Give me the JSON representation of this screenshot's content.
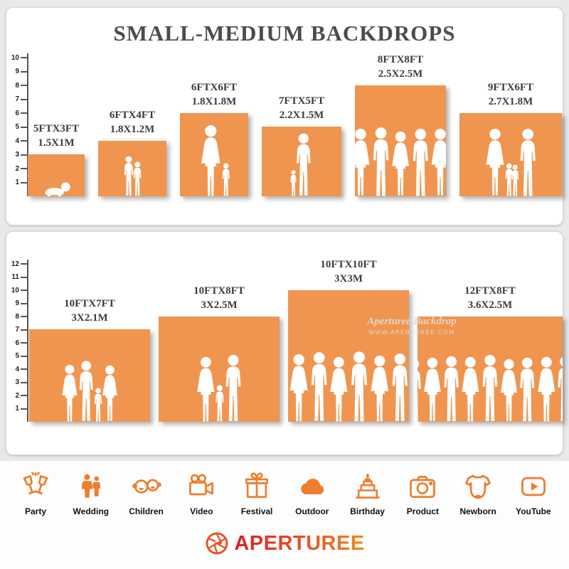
{
  "title": "SMALL-MEDIUM BACKDROPS",
  "colors": {
    "backdrop_orange": "#F0954F",
    "icon_orange": "#EE7D2E",
    "brand_red": "#D91F26",
    "brand_orange": "#F08A1E",
    "silhouette": "#FFFFFF"
  },
  "panel_top": {
    "ruler_ticks": [
      1,
      2,
      3,
      4,
      5,
      6,
      7,
      8,
      9,
      10
    ],
    "backdrops": [
      {
        "size_ft": "5FTX3FT",
        "size_m": "1.5X1M",
        "w_ft": 5,
        "h_ft": 3,
        "figures": [
          {
            "type": "baby",
            "ft": 1.1
          }
        ]
      },
      {
        "size_ft": "6FTX4FT",
        "size_m": "1.8X1.2M",
        "w_ft": 6,
        "h_ft": 4,
        "figures": [
          {
            "type": "child",
            "ft": 2.9
          },
          {
            "type": "child",
            "ft": 2.5
          }
        ]
      },
      {
        "size_ft": "6FTX6FT",
        "size_m": "1.8X1.8M",
        "w_ft": 6,
        "h_ft": 6,
        "figures": [
          {
            "type": "woman",
            "ft": 5.2
          },
          {
            "type": "child",
            "ft": 2.4
          }
        ]
      },
      {
        "size_ft": "7FTX5FT",
        "size_m": "2.2X1.5M",
        "w_ft": 7,
        "h_ft": 5,
        "figures": [
          {
            "type": "child",
            "ft": 1.9
          },
          {
            "type": "man",
            "ft": 4.8
          }
        ]
      },
      {
        "size_ft": "8FTX8FT",
        "size_m": "2.5X2.5M",
        "w_ft": 8,
        "h_ft": 8,
        "figures": [
          {
            "type": "woman",
            "ft": 4.9
          },
          {
            "type": "man",
            "ft": 5.3
          },
          {
            "type": "woman",
            "ft": 4.7
          },
          {
            "type": "man",
            "ft": 5.2
          },
          {
            "type": "woman",
            "ft": 4.9
          }
        ]
      },
      {
        "size_ft": "9FTX6FT",
        "size_m": "2.7X1.8M",
        "w_ft": 9,
        "h_ft": 6,
        "figures": [
          {
            "type": "woman",
            "ft": 4.9
          },
          {
            "type": "child",
            "ft": 2.4
          },
          {
            "type": "child",
            "ft": 2.3
          },
          {
            "type": "man",
            "ft": 5.2
          }
        ]
      }
    ]
  },
  "panel_bottom": {
    "ruler_ticks": [
      1,
      2,
      3,
      4,
      5,
      6,
      7,
      8,
      9,
      10,
      11,
      12
    ],
    "watermark": {
      "line1": "Aperturee Backdrop",
      "line2": "WWW.APERTUREE.COM"
    },
    "backdrops": [
      {
        "size_ft": "10FTX7FT",
        "size_m": "3X2.1M",
        "w_ft": 10,
        "h_ft": 7,
        "figures": [
          {
            "type": "woman",
            "ft": 4.4
          },
          {
            "type": "man",
            "ft": 4.9
          },
          {
            "type": "child",
            "ft": 2.6
          },
          {
            "type": "woman",
            "ft": 4.3
          }
        ]
      },
      {
        "size_ft": "10FTX8FT",
        "size_m": "3X2.5M",
        "w_ft": 10,
        "h_ft": 8,
        "figures": [
          {
            "type": "woman",
            "ft": 5.0
          },
          {
            "type": "child",
            "ft": 2.8
          },
          {
            "type": "man",
            "ft": 5.4
          }
        ]
      },
      {
        "size_ft": "10FTX10FT",
        "size_m": "3X3M",
        "w_ft": 10,
        "h_ft": 10,
        "figures": [
          {
            "type": "woman",
            "ft": 5.2
          },
          {
            "type": "man",
            "ft": 5.6
          },
          {
            "type": "woman",
            "ft": 5.0
          },
          {
            "type": "man",
            "ft": 5.7
          },
          {
            "type": "woman",
            "ft": 5.1
          },
          {
            "type": "man",
            "ft": 5.5
          }
        ]
      },
      {
        "size_ft": "12FTX8FT",
        "size_m": "3.6X2.5M",
        "w_ft": 12,
        "h_ft": 8,
        "figures": [
          {
            "type": "man",
            "ft": 5.1
          },
          {
            "type": "woman",
            "ft": 4.9
          },
          {
            "type": "man",
            "ft": 5.3
          },
          {
            "type": "woman",
            "ft": 5.0
          },
          {
            "type": "man",
            "ft": 5.4
          },
          {
            "type": "woman",
            "ft": 4.8
          },
          {
            "type": "man",
            "ft": 5.2
          },
          {
            "type": "woman",
            "ft": 5.0
          },
          {
            "type": "man",
            "ft": 5.3
          }
        ]
      }
    ]
  },
  "categories": [
    {
      "label": "Party",
      "icon": "party"
    },
    {
      "label": "Wedding",
      "icon": "wedding"
    },
    {
      "label": "Children",
      "icon": "children"
    },
    {
      "label": "Video",
      "icon": "video"
    },
    {
      "label": "Festival",
      "icon": "festival"
    },
    {
      "label": "Outdoor",
      "icon": "outdoor"
    },
    {
      "label": "Birthday",
      "icon": "birthday"
    },
    {
      "label": "Product",
      "icon": "product"
    },
    {
      "label": "Newborn",
      "icon": "newborn"
    },
    {
      "label": "YouTube",
      "icon": "youtube"
    }
  ],
  "brand": {
    "name": "APERTUREE"
  }
}
